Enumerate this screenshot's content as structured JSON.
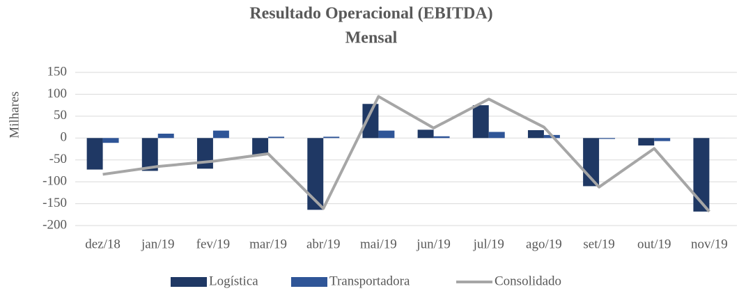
{
  "chart_data": {
    "type": "bar_line",
    "title": "Resultado Operacional (EBITDA)",
    "subtitle": "Mensal",
    "y_label": "Milhares",
    "categories": [
      "dez/18",
      "jan/19",
      "fev/19",
      "mar/19",
      "abr/19",
      "mai/19",
      "jun/19",
      "jul/19",
      "ago/19",
      "set/19",
      "out/19",
      "nov/19"
    ],
    "series": [
      {
        "name": "Logística",
        "type": "bar",
        "color": "#1f3864",
        "values": [
          -72,
          -75,
          -70,
          -38,
          -164,
          78,
          19,
          75,
          18,
          -110,
          -17,
          -168
        ]
      },
      {
        "name": "Transportadora",
        "type": "bar",
        "color": "#2f5597",
        "values": [
          -11,
          10,
          17,
          3,
          3,
          17,
          4,
          14,
          7,
          -2,
          -7,
          0
        ]
      },
      {
        "name": "Consolidado",
        "type": "line",
        "color": "#a6a6a6",
        "values": [
          -83,
          -65,
          -53,
          -36,
          -161,
          95,
          23,
          89,
          25,
          -112,
          -24,
          -168
        ]
      }
    ],
    "ylim": [
      -200,
      150
    ],
    "yticks": [
      -200,
      -150,
      -100,
      -50,
      0,
      50,
      100,
      150
    ],
    "grid": true,
    "legend": "bottom"
  }
}
